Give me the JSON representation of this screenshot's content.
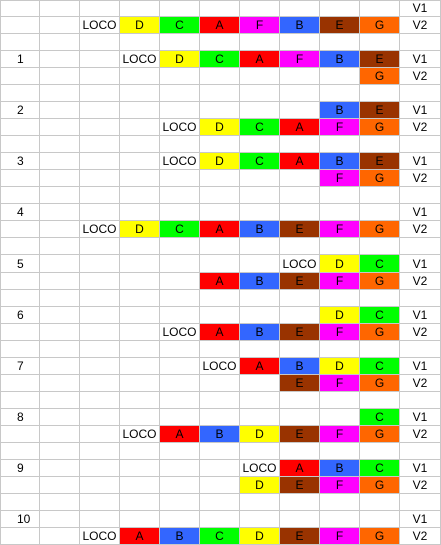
{
  "colors": {
    "A": "#ff0000",
    "B": "#3366ff",
    "C": "#00ff00",
    "D": "#ffff00",
    "E": "#993300",
    "F": "#ff00ff",
    "G": "#ff6600"
  },
  "rows": [
    [
      "",
      "",
      "",
      "",
      "",
      "",
      "",
      "",
      "",
      "",
      "V1"
    ],
    [
      "",
      "",
      "LOCO",
      "D",
      "C",
      "A",
      "F",
      "B",
      "E",
      "G",
      "V2"
    ],
    [
      "",
      "",
      "",
      "",
      "",
      "",
      "",
      "",
      "",
      "",
      ""
    ],
    [
      "1",
      "",
      "",
      "LOCO",
      "D",
      "C",
      "A",
      "F",
      "B",
      "E",
      "V1"
    ],
    [
      "",
      "",
      "",
      "",
      "",
      "",
      "",
      "",
      "",
      "G",
      "V2"
    ],
    [
      "",
      "",
      "",
      "",
      "",
      "",
      "",
      "",
      "",
      "",
      ""
    ],
    [
      "2",
      "",
      "",
      "",
      "",
      "",
      "",
      "",
      "B",
      "E",
      "V1"
    ],
    [
      "",
      "",
      "",
      "",
      "LOCO",
      "D",
      "C",
      "A",
      "F",
      "G",
      "V2"
    ],
    [
      "",
      "",
      "",
      "",
      "",
      "",
      "",
      "",
      "",
      "",
      ""
    ],
    [
      "3",
      "",
      "",
      "",
      "LOCO",
      "D",
      "C",
      "A",
      "B",
      "E",
      "V1"
    ],
    [
      "",
      "",
      "",
      "",
      "",
      "",
      "",
      "",
      "F",
      "G",
      "V2"
    ],
    [
      "",
      "",
      "",
      "",
      "",
      "",
      "",
      "",
      "",
      "",
      ""
    ],
    [
      "4",
      "",
      "",
      "",
      "",
      "",
      "",
      "",
      "",
      "",
      "V1"
    ],
    [
      "",
      "",
      "LOCO",
      "D",
      "C",
      "A",
      "B",
      "E",
      "F",
      "G",
      "V2"
    ],
    [
      "",
      "",
      "",
      "",
      "",
      "",
      "",
      "",
      "",
      "",
      ""
    ],
    [
      "5",
      "",
      "",
      "",
      "",
      "",
      "",
      "LOCO",
      "D",
      "C",
      "V1"
    ],
    [
      "",
      "",
      "",
      "",
      "",
      "A",
      "B",
      "E",
      "F",
      "G",
      "V2"
    ],
    [
      "",
      "",
      "",
      "",
      "",
      "",
      "",
      "",
      "",
      "",
      ""
    ],
    [
      "6",
      "",
      "",
      "",
      "",
      "",
      "",
      "",
      "D",
      "C",
      "V1"
    ],
    [
      "",
      "",
      "",
      "",
      "LOCO",
      "A",
      "B",
      "E",
      "F",
      "G",
      "V2"
    ],
    [
      "",
      "",
      "",
      "",
      "",
      "",
      "",
      "",
      "",
      "",
      ""
    ],
    [
      "7",
      "",
      "",
      "",
      "",
      "LOCO",
      "A",
      "B",
      "D",
      "C",
      "V1"
    ],
    [
      "",
      "",
      "",
      "",
      "",
      "",
      "",
      "E",
      "F",
      "G",
      "V2"
    ],
    [
      "",
      "",
      "",
      "",
      "",
      "",
      "",
      "",
      "",
      "",
      ""
    ],
    [
      "8",
      "",
      "",
      "",
      "",
      "",
      "",
      "",
      "",
      "C",
      "V1"
    ],
    [
      "",
      "",
      "",
      "LOCO",
      "A",
      "B",
      "D",
      "E",
      "F",
      "G",
      "V2"
    ],
    [
      "",
      "",
      "",
      "",
      "",
      "",
      "",
      "",
      "",
      "",
      ""
    ],
    [
      "9",
      "",
      "",
      "",
      "",
      "",
      "LOCO",
      "A",
      "B",
      "C",
      "V1"
    ],
    [
      "",
      "",
      "",
      "",
      "",
      "",
      "D",
      "E",
      "F",
      "G",
      "V2"
    ],
    [
      "",
      "",
      "",
      "",
      "",
      "",
      "",
      "",
      "",
      "",
      ""
    ],
    [
      "10",
      "",
      "",
      "",
      "",
      "",
      "",
      "",
      "",
      "",
      "V1"
    ],
    [
      "",
      "",
      "LOCO",
      "A",
      "B",
      "C",
      "D",
      "E",
      "F",
      "G",
      "V2"
    ]
  ]
}
